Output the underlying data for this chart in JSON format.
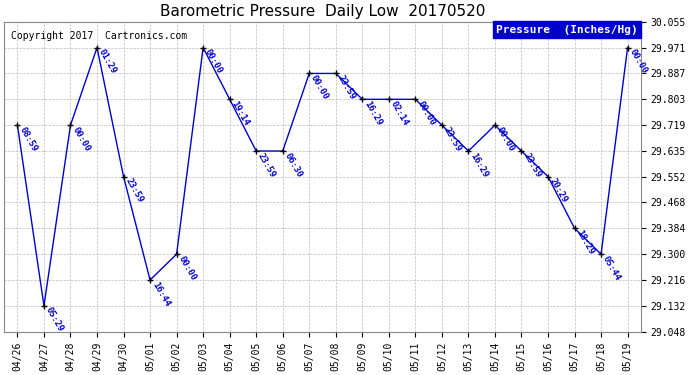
{
  "title": "Barometric Pressure  Daily Low  20170520",
  "copyright": "Copyright 2017  Cartronics.com",
  "legend_label": "Pressure  (Inches/Hg)",
  "background_color": "#ffffff",
  "plot_bg_color": "#ffffff",
  "line_color": "#0000cc",
  "marker_color": "#000000",
  "grid_color": "#bbbbbb",
  "text_color": "#0000cc",
  "dates": [
    "04/26",
    "04/27",
    "04/28",
    "04/29",
    "04/30",
    "05/01",
    "05/02",
    "05/03",
    "05/04",
    "05/05",
    "05/06",
    "05/07",
    "05/08",
    "05/09",
    "05/10",
    "05/11",
    "05/12",
    "05/13",
    "05/14",
    "05/15",
    "05/16",
    "05/17",
    "05/18",
    "05/19"
  ],
  "values": [
    29.719,
    29.132,
    29.719,
    29.971,
    29.552,
    29.216,
    29.3,
    29.971,
    29.803,
    29.635,
    29.635,
    29.887,
    29.887,
    29.803,
    29.803,
    29.803,
    29.719,
    29.635,
    29.719,
    29.635,
    29.552,
    29.384,
    29.3,
    29.971
  ],
  "time_labels": [
    "08:59",
    "05:29",
    "00:00",
    "01:29",
    "23:59",
    "16:44",
    "00:00",
    "00:00",
    "19:14",
    "23:59",
    "06:30",
    "00:00",
    "23:59",
    "16:29",
    "02:14",
    "00:00",
    "23:59",
    "16:29",
    "00:00",
    "23:59",
    "20:29",
    "18:29",
    "05:44",
    "00:00"
  ],
  "ylim": [
    29.048,
    30.055
  ],
  "yticks": [
    29.048,
    29.132,
    29.216,
    29.3,
    29.384,
    29.468,
    29.552,
    29.635,
    29.719,
    29.803,
    29.887,
    29.971,
    30.055
  ],
  "title_fontsize": 11,
  "label_fontsize": 6.5,
  "tick_fontsize": 7,
  "copyright_fontsize": 7,
  "legend_fontsize": 8
}
